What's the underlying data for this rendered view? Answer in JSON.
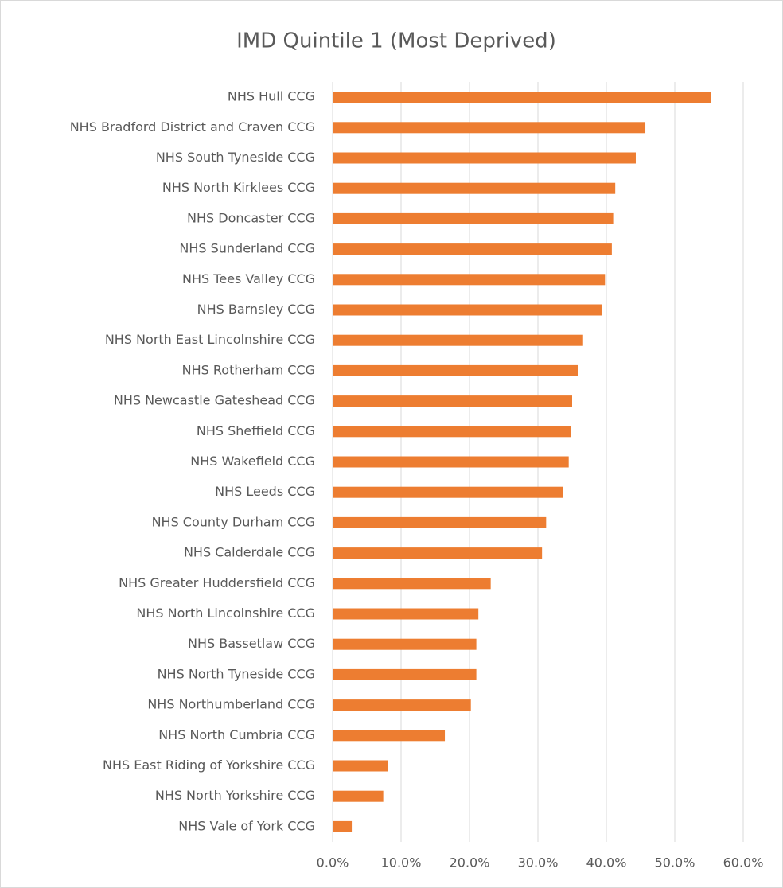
{
  "chart_data": {
    "type": "bar",
    "orientation": "horizontal",
    "title": "IMD Quintile 1 (Most Deprived)",
    "categories": [
      "NHS Hull CCG",
      "NHS Bradford District and Craven CCG",
      "NHS South Tyneside CCG",
      "NHS North Kirklees CCG",
      "NHS Doncaster CCG",
      "NHS Sunderland CCG",
      "NHS Tees Valley CCG",
      "NHS Barnsley CCG",
      "NHS North East Lincolnshire CCG",
      "NHS Rotherham CCG",
      "NHS Newcastle Gateshead CCG",
      "NHS Sheffield CCG",
      "NHS Wakefield CCG",
      "NHS Leeds CCG",
      "NHS County Durham CCG",
      "NHS Calderdale CCG",
      "NHS Greater Huddersfield CCG",
      "NHS North Lincolnshire CCG",
      "NHS Bassetlaw CCG",
      "NHS North Tyneside CCG",
      "NHS Northumberland CCG",
      "NHS North Cumbria CCG",
      "NHS East Riding of Yorkshire CCG",
      "NHS North Yorkshire CCG",
      "NHS Vale of York CCG"
    ],
    "values": [
      55.3,
      45.7,
      44.3,
      41.3,
      41.0,
      40.8,
      39.8,
      39.3,
      36.6,
      35.9,
      35.0,
      34.8,
      34.5,
      33.7,
      31.2,
      30.6,
      23.1,
      21.3,
      21.0,
      21.0,
      20.2,
      16.4,
      8.1,
      7.4,
      2.8
    ],
    "color": "#ed7d31",
    "xlim": [
      0,
      60
    ],
    "xticks": [
      {
        "value": 0,
        "label": "0.0%"
      },
      {
        "value": 10,
        "label": "10.0%"
      },
      {
        "value": 20,
        "label": "20.0%"
      },
      {
        "value": 30,
        "label": "30.0%"
      },
      {
        "value": 40,
        "label": "40.0%"
      },
      {
        "value": 50,
        "label": "50.0%"
      },
      {
        "value": 60,
        "label": "60.0%"
      }
    ],
    "grid": true
  }
}
